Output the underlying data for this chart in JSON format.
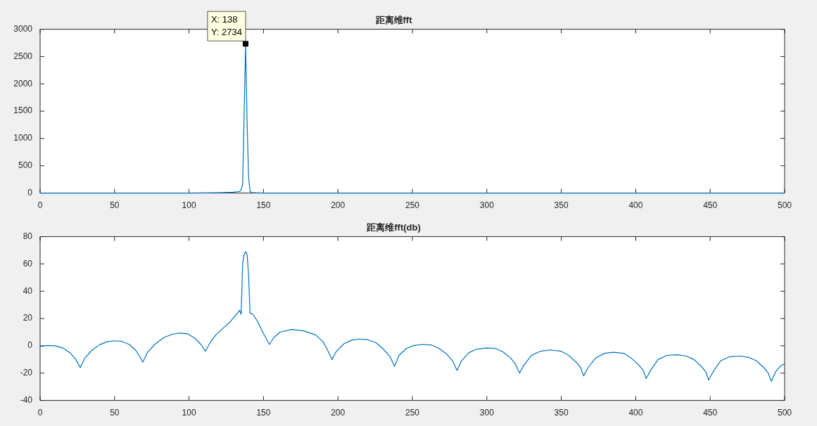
{
  "chart_data": [
    {
      "type": "line",
      "title": "距离维fft",
      "x": [
        0,
        50,
        100,
        120,
        130,
        134,
        135,
        136,
        137,
        138,
        139,
        140,
        141,
        142,
        145,
        150,
        200,
        300,
        400,
        500
      ],
      "series": [
        {
          "color": "#0072bd",
          "values": [
            0,
            0,
            0,
            6,
            15,
            30,
            60,
            150,
            1400,
            2734,
            1300,
            300,
            30,
            10,
            5,
            0,
            0,
            0,
            0,
            0
          ]
        }
      ],
      "xlim": [
        0,
        500
      ],
      "xticks": [
        0,
        50,
        100,
        150,
        200,
        250,
        300,
        350,
        400,
        450,
        500
      ],
      "ylim": [
        0,
        3000
      ],
      "yticks": [
        0,
        500,
        1000,
        1500,
        2000,
        2500,
        3000
      ],
      "grid": false,
      "marker": "none",
      "annotations": [
        {
          "text": "X: 138",
          "x": 138,
          "y": 2734
        },
        {
          "text": "Y: 2734",
          "x": 138,
          "y": 2734
        }
      ]
    },
    {
      "type": "line",
      "title": "距离维fft(db)",
      "x": [
        0,
        5,
        10,
        15,
        20,
        24,
        27,
        30,
        35,
        40,
        45,
        50,
        55,
        60,
        64,
        67,
        69,
        72,
        77,
        83,
        89,
        94,
        99,
        104,
        108,
        111,
        114,
        118,
        122,
        128,
        134,
        135,
        136,
        137,
        138,
        139,
        140,
        141,
        143,
        146,
        150,
        154,
        157,
        161,
        169,
        177,
        185,
        190,
        193,
        196,
        199,
        204,
        209,
        214,
        220,
        226,
        231,
        235,
        238,
        241,
        246,
        251,
        257,
        263,
        268,
        273,
        277,
        280,
        283,
        288,
        293,
        300,
        306,
        311,
        316,
        319,
        322,
        325,
        330,
        336,
        343,
        350,
        355,
        360,
        363,
        365,
        368,
        373,
        379,
        385,
        392,
        397,
        402,
        405,
        407,
        410,
        415,
        421,
        428,
        434,
        439,
        444,
        447,
        449,
        452,
        457,
        463,
        470,
        476,
        481,
        486,
        489,
        491,
        494,
        497,
        500
      ],
      "series": [
        {
          "color": "#0072bd",
          "values": [
            -0.5,
            0.3,
            0,
            -1.5,
            -5,
            -10,
            -16,
            -9,
            -3,
            0.8,
            3,
            3.7,
            3.2,
            1,
            -3,
            -8,
            -12,
            -5,
            1,
            6,
            8.6,
            9.3,
            8.8,
            5.5,
            1,
            -4,
            2,
            8,
            12,
            18,
            26,
            23,
            60,
            67,
            69,
            67,
            52,
            24,
            23,
            18,
            9,
            1,
            6,
            10,
            12,
            11,
            8,
            3,
            -3,
            -10,
            -4,
            1.5,
            4,
            5,
            4.5,
            2,
            -3,
            -8,
            -15,
            -7,
            -2,
            0.3,
            1,
            0.5,
            -2,
            -6,
            -11,
            -18,
            -11,
            -5,
            -2.5,
            -1.5,
            -2,
            -4.5,
            -9,
            -13,
            -20,
            -14,
            -7,
            -4,
            -3,
            -4,
            -7,
            -12,
            -16,
            -22,
            -16,
            -9,
            -5.5,
            -4.7,
            -5.5,
            -9,
            -14,
            -18,
            -24,
            -18,
            -10,
            -7,
            -6.5,
            -7.5,
            -10,
            -15,
            -19,
            -25,
            -19,
            -11,
            -8,
            -7.5,
            -8.5,
            -11,
            -16,
            -20,
            -26,
            -19,
            -15,
            -13
          ]
        }
      ],
      "xlim": [
        0,
        500
      ],
      "xticks": [
        0,
        50,
        100,
        150,
        200,
        250,
        300,
        350,
        400,
        450,
        500
      ],
      "ylim": [
        -40,
        80
      ],
      "yticks": [
        -40,
        -20,
        0,
        20,
        40,
        60,
        80
      ],
      "grid": false,
      "marker": "none"
    }
  ]
}
